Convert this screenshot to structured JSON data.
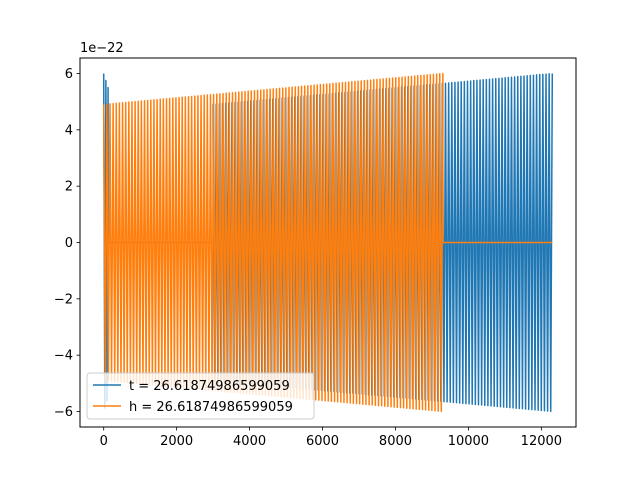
{
  "chart_data": {
    "type": "line",
    "title": "",
    "xlabel": "",
    "ylabel": "",
    "xlim": [
      -650,
      12950
    ],
    "ylim": [
      -6.55e-22,
      6.55e-22
    ],
    "x_ticks": [
      0,
      2000,
      4000,
      6000,
      8000,
      10000,
      12000
    ],
    "x_tick_labels": [
      "0",
      "2000",
      "4000",
      "6000",
      "8000",
      "10000",
      "12000"
    ],
    "y_ticks": [
      -6e-22,
      -4e-22,
      -2e-22,
      0,
      2e-22,
      4e-22,
      6e-22
    ],
    "y_tick_labels": [
      "−6",
      "−4",
      "−2",
      "0",
      "2",
      "4",
      "6"
    ],
    "y_offset_text": "1e−22",
    "grid": false,
    "legend_position": "lower-left",
    "series": [
      {
        "name": "t = 26.61874986599059",
        "color": "#1f77b4",
        "segments": [
          {
            "x_start": 0,
            "x_end": 120,
            "cycles": 2,
            "amp_start": 6e-22,
            "amp_end": 5.5e-22
          },
          {
            "x_start": 120,
            "x_end": 3000,
            "cycles": 0,
            "amp_start": 0,
            "amp_end": 0
          },
          {
            "x_start": 3000,
            "x_end": 12300,
            "cycles": 108,
            "amp_start": 4.9e-22,
            "amp_end": 6e-22
          }
        ]
      },
      {
        "name": "h = 26.61874986599059",
        "color": "#ff7f0e",
        "segments": [
          {
            "x_start": 0,
            "x_end": 9300,
            "cycles": 108,
            "amp_start": 4.9e-22,
            "amp_end": 6e-22
          },
          {
            "x_start": 9300,
            "x_end": 12300,
            "cycles": 0,
            "amp_start": 0,
            "amp_end": 0
          }
        ]
      }
    ]
  }
}
